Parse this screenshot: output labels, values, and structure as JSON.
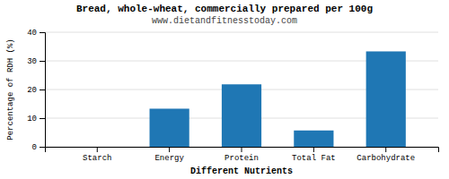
{
  "chart_data": {
    "type": "bar",
    "title": "Bread, whole-wheat, commercially prepared per 100g",
    "subtitle": "www.dietandfitnesstoday.com",
    "xlabel": "Different Nutrients",
    "ylabel": "Percentage of RDH (%)",
    "categories": [
      "Starch",
      "Energy",
      "Protein",
      "Total Fat",
      "Carbohydrate"
    ],
    "values": [
      0,
      13.3,
      21.8,
      5.7,
      33.3
    ],
    "ylim": [
      0,
      40
    ],
    "yticks": [
      0,
      10,
      20,
      30,
      40
    ],
    "grid": true
  }
}
